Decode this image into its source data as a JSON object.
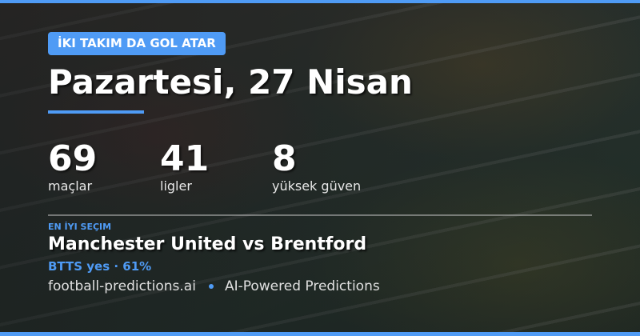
{
  "badge": "İKI TAKIM DA GOL ATAR",
  "title": "Pazartesi, 27 Nisan",
  "stats": [
    {
      "value": "69",
      "label": "maçlar"
    },
    {
      "value": "41",
      "label": "ligler"
    },
    {
      "value": "8",
      "label": "yüksek güven"
    }
  ],
  "best_pick": {
    "label": "EN İYI SEÇIM",
    "match": "Manchester United vs Brentford",
    "prediction": "BTTS yes · 61%"
  },
  "footer": {
    "site": "football-predictions.ai",
    "tagline": "AI-Powered Predictions"
  },
  "colors": {
    "accent": "#4f9bf5",
    "text": "#ffffff"
  }
}
